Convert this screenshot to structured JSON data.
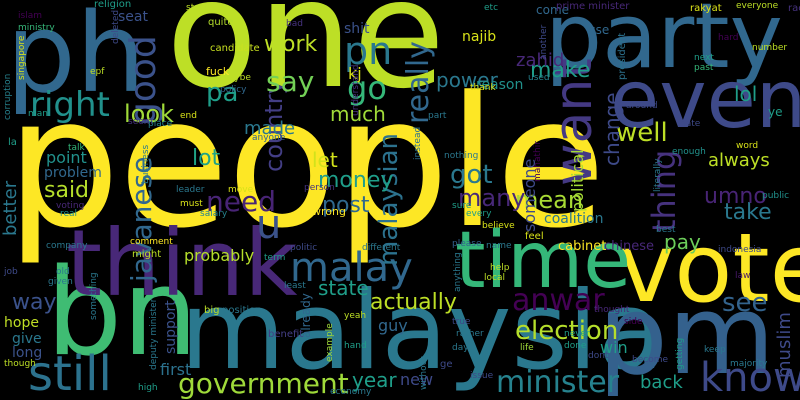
{
  "cloud": {
    "words": [
      {
        "text": "one",
        "color": "#bddf26"
      },
      {
        "text": "people",
        "color": "#fde725"
      },
      {
        "text": "malaysia",
        "color": "#2a788e"
      },
      {
        "text": "bn",
        "color": "#3fbc73"
      },
      {
        "text": "ph",
        "color": "#31688e"
      },
      {
        "text": "party",
        "color": "#31688e"
      },
      {
        "text": "pm",
        "color": "#34618d"
      },
      {
        "text": "vote",
        "color": "#fde725"
      },
      {
        "text": "time",
        "color": "#35b779"
      },
      {
        "text": "think",
        "color": "#482878"
      },
      {
        "text": "even",
        "color": "#3e4a89"
      },
      {
        "text": "still",
        "color": "#2c728e"
      },
      {
        "text": "know",
        "color": "#3e4a89"
      },
      {
        "text": "want",
        "color": "#443983"
      },
      {
        "text": "government",
        "color": "#9fda3a"
      },
      {
        "text": "minister",
        "color": "#26828e"
      },
      {
        "text": "malay",
        "color": "#31688e"
      },
      {
        "text": "good",
        "color": "#3b528b"
      },
      {
        "text": "right",
        "color": "#21918c"
      },
      {
        "text": "anwar",
        "color": "#440154"
      },
      {
        "text": "election",
        "color": "#b5de2b"
      },
      {
        "text": "really",
        "color": "#31688e"
      },
      {
        "text": "malaysian",
        "color": "#2c728e"
      },
      {
        "text": "country",
        "color": "#433e85"
      },
      {
        "text": "javanese",
        "color": "#31688e"
      },
      {
        "text": "thing",
        "color": "#46327e"
      },
      {
        "text": "u",
        "color": "#3b528b"
      },
      {
        "text": "pa",
        "color": "#1f9e89"
      },
      {
        "text": "pn",
        "color": "#2a788e"
      },
      {
        "text": "go",
        "color": "#35b779"
      },
      {
        "text": "say",
        "color": "#73d056"
      },
      {
        "text": "need",
        "color": "#482475"
      },
      {
        "text": "work",
        "color": "#bddf26"
      },
      {
        "text": "look",
        "color": "#a0da39"
      },
      {
        "text": "lot",
        "color": "#20a386"
      },
      {
        "text": "well",
        "color": "#bddf26"
      },
      {
        "text": "mean",
        "color": "#a8db34"
      },
      {
        "text": "said",
        "color": "#b5de2b"
      },
      {
        "text": "many",
        "color": "#482878"
      },
      {
        "text": "got",
        "color": "#2a788e"
      },
      {
        "text": "money",
        "color": "#1f9e89"
      },
      {
        "text": "let",
        "color": "#d2e21b"
      },
      {
        "text": "post",
        "color": "#30698e"
      },
      {
        "text": "year",
        "color": "#1f9e89"
      },
      {
        "text": "state",
        "color": "#1f9e89"
      },
      {
        "text": "actually",
        "color": "#bddf26"
      },
      {
        "text": "way",
        "color": "#3b528b"
      },
      {
        "text": "back",
        "color": "#1f9e89"
      },
      {
        "text": "see",
        "color": "#33638d"
      },
      {
        "text": "take",
        "color": "#2a788e"
      },
      {
        "text": "pay",
        "color": "#6ccd5a"
      },
      {
        "text": "umno",
        "color": "#482475"
      },
      {
        "text": "make",
        "color": "#1f9e89"
      },
      {
        "text": "power",
        "color": "#2a788e"
      },
      {
        "text": "much",
        "color": "#a0da39"
      },
      {
        "text": "made",
        "color": "#2a788e"
      },
      {
        "text": "zahid",
        "color": "#482878"
      },
      {
        "text": "lol",
        "color": "#1f9e89"
      },
      {
        "text": "always",
        "color": "#bddf26"
      },
      {
        "text": "change",
        "color": "#3e4a89"
      },
      {
        "text": "new",
        "color": "#3e4a89"
      },
      {
        "text": "better",
        "color": "#2a788e"
      },
      {
        "text": "hope",
        "color": "#c0df25"
      },
      {
        "text": "give",
        "color": "#2a788e"
      },
      {
        "text": "long",
        "color": "#3b528b"
      },
      {
        "text": "point",
        "color": "#21918c"
      },
      {
        "text": "problem",
        "color": "#31688e"
      },
      {
        "text": "political",
        "color": "#a5db36"
      },
      {
        "text": "someone",
        "color": "#3e4a89"
      },
      {
        "text": "probably",
        "color": "#b5de2b"
      },
      {
        "text": "muslim",
        "color": "#3e4a89"
      },
      {
        "text": "win",
        "color": "#1f9e89"
      },
      {
        "text": "first",
        "color": "#2c728e"
      },
      {
        "text": "support",
        "color": "#3b528b"
      },
      {
        "text": "guy",
        "color": "#31688e"
      },
      {
        "text": "reason",
        "color": "#21918c"
      },
      {
        "text": "najib",
        "color": "#d8e219"
      },
      {
        "text": "kj",
        "color": "#d8e219"
      },
      {
        "text": "shit",
        "color": "#3b528b"
      },
      {
        "text": "coalition",
        "color": "#2a788e"
      },
      {
        "text": "cabinet",
        "color": "#fde725"
      },
      {
        "text": "chinese",
        "color": "#482878"
      },
      {
        "text": "come",
        "color": "#31688e"
      },
      {
        "text": "use",
        "color": "#31688e"
      },
      {
        "text": "seat",
        "color": "#3b528b"
      },
      {
        "text": "already",
        "color": "#31688e"
      },
      {
        "text": "actually",
        "color": "#bddf26"
      },
      {
        "text": "religion",
        "color": "#1f9e89"
      },
      {
        "text": "start",
        "color": "#bddf26"
      },
      {
        "text": "quite",
        "color": "#b5de2b"
      },
      {
        "text": "candidate",
        "color": "#c8e020"
      },
      {
        "text": "fuck",
        "color": "#fde725"
      },
      {
        "text": "maybe",
        "color": "#bddf26"
      },
      {
        "text": "policy",
        "color": "#31688e"
      },
      {
        "text": "understand",
        "color": "#46327e"
      },
      {
        "text": "thank",
        "color": "#d8e219"
      },
      {
        "text": "used",
        "color": "#26828e"
      },
      {
        "text": "etc",
        "color": "#1f9e89"
      },
      {
        "text": "prime minister",
        "color": "#482878"
      },
      {
        "text": "rakyat",
        "color": "#dde318"
      },
      {
        "text": "everyone",
        "color": "#bddf26"
      },
      {
        "text": "race",
        "color": "#46327e"
      },
      {
        "text": "president",
        "color": "#2c728e"
      },
      {
        "text": "next",
        "color": "#1f9e89"
      },
      {
        "text": "past",
        "color": "#35b779"
      },
      {
        "text": "hard",
        "color": "#440154"
      },
      {
        "text": "number",
        "color": "#bddf26"
      },
      {
        "text": "public",
        "color": "#21918c"
      },
      {
        "text": "indonesia",
        "color": "#3e4a89"
      },
      {
        "text": "law",
        "color": "#48186a"
      },
      {
        "text": "corruption",
        "color": "#26828e"
      },
      {
        "text": "islam",
        "color": "#440154"
      },
      {
        "text": "ministry",
        "color": "#35b779"
      },
      {
        "text": "singapore",
        "color": "#d8e219"
      },
      {
        "text": "epf",
        "color": "#bddf26"
      },
      {
        "text": "man",
        "color": "#1f9e89"
      },
      {
        "text": "talk",
        "color": "#35b779"
      },
      {
        "text": "voting",
        "color": "#482878"
      },
      {
        "text": "real",
        "color": "#21918c"
      },
      {
        "text": "company",
        "color": "#2a788e"
      },
      {
        "text": "job",
        "color": "#3e4a89"
      },
      {
        "text": "though",
        "color": "#bddf26"
      },
      {
        "text": "deputy minister",
        "color": "#2a788e"
      },
      {
        "text": "big",
        "color": "#bddf26"
      },
      {
        "text": "position",
        "color": "#2a788e"
      },
      {
        "text": "benefit",
        "color": "#433e85"
      },
      {
        "text": "term",
        "color": "#1f9e89"
      },
      {
        "text": "politic",
        "color": "#3e4a89"
      },
      {
        "text": "might",
        "color": "#bddf26"
      },
      {
        "text": "comment",
        "color": "#fde725"
      },
      {
        "text": "leader",
        "color": "#2a788e"
      },
      {
        "text": "move",
        "color": "#d8e219"
      },
      {
        "text": "salary",
        "color": "#26828e"
      },
      {
        "text": "must",
        "color": "#d8e219"
      },
      {
        "text": "person",
        "color": "#46327e"
      },
      {
        "text": "wrong",
        "color": "#fde725"
      },
      {
        "text": "anyone",
        "color": "#33638d"
      },
      {
        "text": "place",
        "color": "#26828e"
      },
      {
        "text": "end",
        "color": "#d8e219"
      },
      {
        "text": "seem",
        "color": "#46327e"
      },
      {
        "text": "business",
        "color": "#2a788e"
      },
      {
        "text": "nothing",
        "color": "#2a788e"
      },
      {
        "text": "instead",
        "color": "#2c728e"
      },
      {
        "text": "different",
        "color": "#2a788e"
      },
      {
        "text": "least",
        "color": "#2a788e"
      },
      {
        "text": "believe",
        "color": "#d8e219"
      },
      {
        "text": "feel",
        "color": "#d8e219"
      },
      {
        "text": "name",
        "color": "#2a788e"
      },
      {
        "text": "help",
        "color": "#bddf26"
      },
      {
        "text": "local",
        "color": "#bddf26"
      },
      {
        "text": "true",
        "color": "#3e4a89"
      },
      {
        "text": "thought",
        "color": "#482878"
      },
      {
        "text": "side",
        "color": "#440154"
      },
      {
        "text": "never",
        "color": "#1f9e89"
      },
      {
        "text": "done",
        "color": "#1f9e89"
      },
      {
        "text": "dont",
        "color": "#3e4a89"
      },
      {
        "text": "become",
        "color": "#3e4a89"
      },
      {
        "text": "majority",
        "color": "#2a788e"
      },
      {
        "text": "high",
        "color": "#1f9e89"
      },
      {
        "text": "yeah",
        "color": "#bddf26"
      },
      {
        "text": "hand",
        "color": "#1f9e89"
      },
      {
        "text": "life",
        "color": "#a0da39"
      },
      {
        "text": "issue",
        "color": "#3e4a89"
      },
      {
        "text": "economy",
        "color": "#2a788e"
      },
      {
        "text": "example",
        "color": "#a0da39"
      },
      {
        "text": "without",
        "color": "#2a788e"
      },
      {
        "text": "enough",
        "color": "#21918c"
      },
      {
        "text": "word",
        "color": "#d8e219"
      },
      {
        "text": "hate",
        "color": "#3e4a89"
      },
      {
        "text": "around",
        "color": "#3e4a89"
      },
      {
        "text": "best",
        "color": "#2a788e"
      },
      {
        "text": "every",
        "color": "#1f9e89"
      },
      {
        "text": "sure",
        "color": "#1f9e89"
      },
      {
        "text": "please",
        "color": "#33638d"
      },
      {
        "text": "literally",
        "color": "#2a788e"
      },
      {
        "text": "getting",
        "color": "#1f9e89"
      },
      {
        "text": "la",
        "color": "#1f9e89"
      },
      {
        "text": "ye",
        "color": "#1f9e89"
      },
      {
        "text": "ge",
        "color": "#3e4a89"
      },
      {
        "text": "old",
        "color": "#2a788e"
      },
      {
        "text": "given",
        "color": "#2a788e"
      },
      {
        "text": "deleted",
        "color": "#3e4a89"
      },
      {
        "text": "bad",
        "color": "#46327e"
      },
      {
        "text": "another",
        "color": "#3e4a89"
      },
      {
        "text": "part",
        "color": "#2a788e"
      },
      {
        "text": "mahathir",
        "color": "#440154"
      },
      {
        "text": "something",
        "color": "#2a788e"
      },
      {
        "text": "anything",
        "color": "#2a788e"
      },
      {
        "text": "rather",
        "color": "#2a788e"
      },
      {
        "text": "day",
        "color": "#2a788e"
      },
      {
        "text": "keep",
        "color": "#2a788e"
      }
    ]
  }
}
